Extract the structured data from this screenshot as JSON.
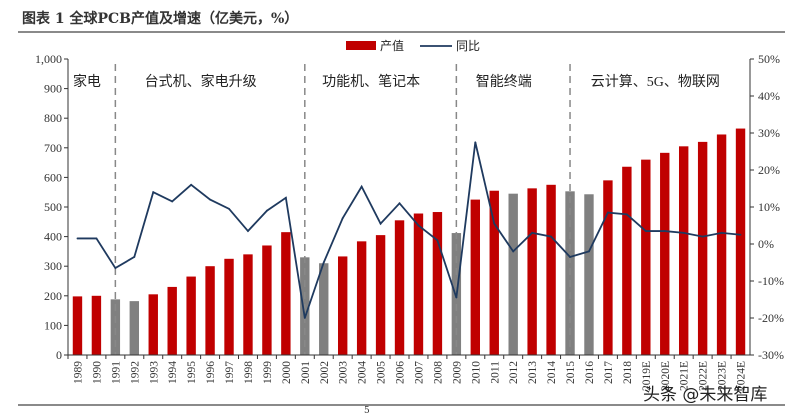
{
  "title": "图表 1   全球PCB产值及增速（亿美元，%）",
  "page_number": "5",
  "watermark": "头条 @未来智库",
  "chart_data": {
    "type": "bar+line",
    "categories": [
      "1989",
      "1990",
      "1991",
      "1992",
      "1993",
      "1994",
      "1995",
      "1996",
      "1997",
      "1998",
      "1999",
      "2000",
      "2001",
      "2002",
      "2003",
      "2004",
      "2005",
      "2006",
      "2007",
      "2008",
      "2009",
      "2010",
      "2011",
      "2012",
      "2013",
      "2014",
      "2015",
      "2016",
      "2017",
      "2018",
      "2019E",
      "2020E",
      "2021E",
      "2022E",
      "2023E",
      "2024E"
    ],
    "series": [
      {
        "name": "产值",
        "type": "bar",
        "axis": "left",
        "color": "#c00000",
        "highlight_color": "#808080",
        "highlight_categories": [
          "1991",
          "1992",
          "2001",
          "2002",
          "2009",
          "2012",
          "2015",
          "2016"
        ],
        "values": [
          198,
          200,
          188,
          182,
          205,
          230,
          265,
          300,
          325,
          340,
          370,
          415,
          330,
          310,
          333,
          384,
          405,
          455,
          478,
          483,
          412,
          525,
          555,
          545,
          563,
          575,
          553,
          543,
          590,
          636,
          660,
          683,
          705,
          720,
          745,
          765
        ]
      },
      {
        "name": "同比",
        "type": "line",
        "axis": "right",
        "color": "#1f3a5f",
        "values": [
          1.5,
          1.5,
          -6.5,
          -3.5,
          14,
          11.5,
          16,
          12,
          9.5,
          3.5,
          9,
          12.5,
          -20,
          -5,
          7,
          15.5,
          5.5,
          11,
          5,
          1,
          -14.5,
          27.5,
          5.5,
          -2,
          3,
          2,
          -3.5,
          -2,
          8.5,
          8,
          3.5,
          3.5,
          3,
          2,
          3,
          2.5
        ]
      }
    ],
    "y_left": {
      "range": [
        0,
        1000
      ],
      "ticks": [
        "0",
        "100",
        "200",
        "300",
        "400",
        "500",
        "600",
        "700",
        "800",
        "900",
        "1,000"
      ]
    },
    "y_right": {
      "range": [
        -30,
        50
      ],
      "ticks": [
        "-30%",
        "-20%",
        "-10%",
        "0%",
        "10%",
        "20%",
        "30%",
        "40%",
        "50%"
      ]
    },
    "legend": {
      "position": "top",
      "entries": [
        "产值",
        "同比"
      ]
    },
    "annotations": [
      {
        "text": "家电",
        "from": "1989",
        "to": "1990"
      },
      {
        "text": "台式机、家电升级",
        "from": "1991",
        "to": "2000"
      },
      {
        "text": "功能机、笔记本",
        "from": "2001",
        "to": "2008"
      },
      {
        "text": "智能终端",
        "from": "2009",
        "to": "2014"
      },
      {
        "text": "云计算、5G、物联网",
        "from": "2015",
        "to": "2024E"
      }
    ],
    "dividers_at": [
      "1991",
      "2001",
      "2009",
      "2015"
    ],
    "grid": false
  }
}
